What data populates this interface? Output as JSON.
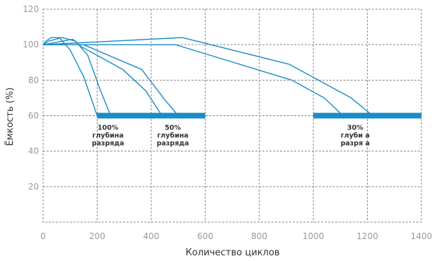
{
  "chart_data": {
    "type": "line",
    "title": "",
    "xlabel": "Количество циклов",
    "ylabel": "Ёмкость (%)",
    "xlim": [
      0,
      1400
    ],
    "ylim": [
      0,
      120
    ],
    "xticks": [
      0,
      200,
      400,
      600,
      800,
      1000,
      1200,
      1400
    ],
    "yticks": [
      20,
      40,
      60,
      80,
      100,
      120
    ],
    "grid": true,
    "grid_style": "dashed",
    "legend": "none",
    "line_color": "#1a8cc6",
    "band_color": "#1a8cc6",
    "series": [
      {
        "points": [
          [
            0,
            100
          ],
          [
            10,
            102
          ],
          [
            30,
            104
          ],
          [
            60,
            104
          ],
          [
            100,
            97
          ],
          [
            150,
            82
          ],
          [
            200,
            60
          ]
        ]
      },
      {
        "points": [
          [
            0,
            100
          ],
          [
            20,
            102
          ],
          [
            70,
            104
          ],
          [
            120,
            102
          ],
          [
            165,
            94
          ],
          [
            210,
            75
          ],
          [
            250,
            60
          ]
        ]
      },
      {
        "points": [
          [
            0,
            100
          ],
          [
            110,
            103
          ],
          [
            140,
            99
          ],
          [
            295,
            86
          ],
          [
            380,
            74
          ],
          [
            440,
            60
          ]
        ]
      },
      {
        "points": [
          [
            0,
            100
          ],
          [
            150,
            100
          ],
          [
            365,
            86
          ],
          [
            450,
            69
          ],
          [
            500,
            60
          ]
        ]
      },
      {
        "points": [
          [
            0,
            100
          ],
          [
            490,
            100
          ],
          [
            920,
            80
          ],
          [
            1040,
            70
          ],
          [
            1110,
            60
          ]
        ]
      },
      {
        "points": [
          [
            0,
            100
          ],
          [
            515,
            104
          ],
          [
            910,
            89
          ],
          [
            1140,
            70
          ],
          [
            1220,
            60
          ]
        ]
      }
    ],
    "bands": [
      {
        "x_start": 200,
        "x_end": 600,
        "y": 60
      },
      {
        "x_start": 1000,
        "x_end": 1400,
        "y": 60
      }
    ],
    "annotations": [
      {
        "lines": [
          "100%",
          "глубина",
          "разряда"
        ],
        "x": 240,
        "y": 52
      },
      {
        "lines": [
          "50%",
          "глубина",
          "разряда"
        ],
        "x": 480,
        "y": 52
      },
      {
        "lines": [
          "30%",
          "глуби а",
          "разря а"
        ],
        "x": 1155,
        "y": 52
      }
    ]
  }
}
